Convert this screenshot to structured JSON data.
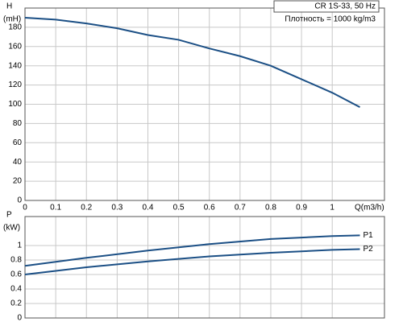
{
  "chart_data": [
    {
      "type": "line",
      "ylabel": "H",
      "yunit": "(mH)",
      "xlabel": "Q(m3/h)",
      "annotations": [
        "CR 1S-33, 50 Hz",
        "Плотность = 1000 kg/m3"
      ],
      "x": [
        0,
        0.1,
        0.2,
        0.3,
        0.4,
        0.5,
        0.6,
        0.7,
        0.8,
        0.9,
        1.0,
        1.09
      ],
      "values": [
        190,
        188,
        184,
        179,
        172,
        167,
        158,
        150,
        140,
        126,
        112,
        97
      ],
      "color": "#1b4f85",
      "xlim": [
        0,
        1.17
      ],
      "xticks": [
        0,
        0.1,
        0.2,
        0.3,
        0.4,
        0.5,
        0.6,
        0.7,
        0.8,
        0.9,
        1
      ],
      "ylim": [
        0,
        200
      ],
      "yticks": [
        0,
        20,
        40,
        60,
        80,
        100,
        120,
        140,
        160,
        180
      ],
      "grid": true
    },
    {
      "type": "line",
      "ylabel": "P",
      "yunit": "(kW)",
      "x": [
        0,
        0.2,
        0.4,
        0.6,
        0.8,
        1.0,
        1.09
      ],
      "series": [
        {
          "name": "P1",
          "color": "#1b4f85",
          "values": [
            0.72,
            0.83,
            0.93,
            1.02,
            1.09,
            1.13,
            1.14
          ]
        },
        {
          "name": "P2",
          "color": "#1b4f85",
          "values": [
            0.6,
            0.7,
            0.78,
            0.85,
            0.9,
            0.94,
            0.95
          ]
        }
      ],
      "xlim": [
        0,
        1.17
      ],
      "xticks": [
        0,
        0.1,
        0.2,
        0.3,
        0.4,
        0.5,
        0.6,
        0.7,
        0.8,
        0.9,
        1
      ],
      "show_xtick_labels": false,
      "ylim": [
        0,
        1.4
      ],
      "yticks": [
        0,
        0.2,
        0.4,
        0.6,
        0.8,
        1
      ],
      "grid": true
    }
  ]
}
